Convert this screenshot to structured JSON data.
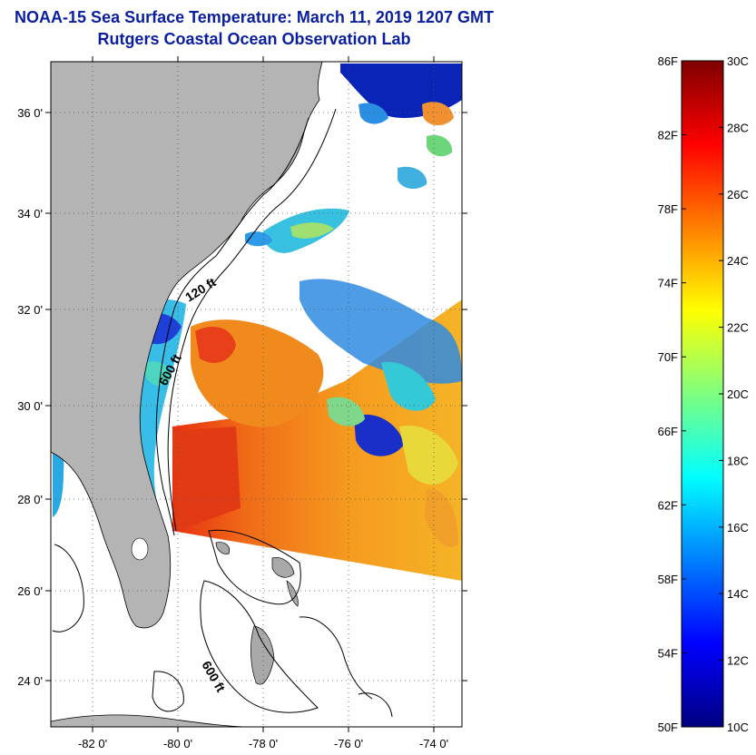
{
  "header": {
    "title": "NOAA-15 Sea Surface Temperature:  March 11, 2019 1207 GMT",
    "subtitle": "Rutgers Coastal Ocean Observation Lab"
  },
  "map": {
    "lat_labels": [
      "36 0'",
      "34 0'",
      "32 0'",
      "30 0'",
      "28 0'",
      "26 0'",
      "24 0'"
    ],
    "lon_labels": [
      "-82 0'",
      "-80 0'",
      "-78 0'",
      "-76 0'",
      "-74 0'"
    ],
    "contour_labels": [
      "120 ft",
      "600 ft",
      "600 ft"
    ],
    "colors": {
      "land": "#b4b4b4",
      "ocean_nodata": "#ffffff",
      "grid": "#555555"
    }
  },
  "colorbar": {
    "fahrenheit_labels": [
      "86F",
      "82F",
      "78F",
      "74F",
      "70F",
      "66F",
      "62F",
      "58F",
      "54F",
      "50F"
    ],
    "celsius_labels": [
      "30C",
      "28C",
      "26C",
      "24C",
      "22C",
      "20C",
      "18C",
      "16C",
      "14C",
      "12C",
      "10C"
    ],
    "range_F": [
      50,
      86
    ],
    "range_C": [
      10,
      30
    ],
    "palette": [
      "#00007f",
      "#0000ff",
      "#007fff",
      "#00ffff",
      "#7fff7f",
      "#ffff00",
      "#ff7f00",
      "#ff0000",
      "#7f0000"
    ]
  }
}
